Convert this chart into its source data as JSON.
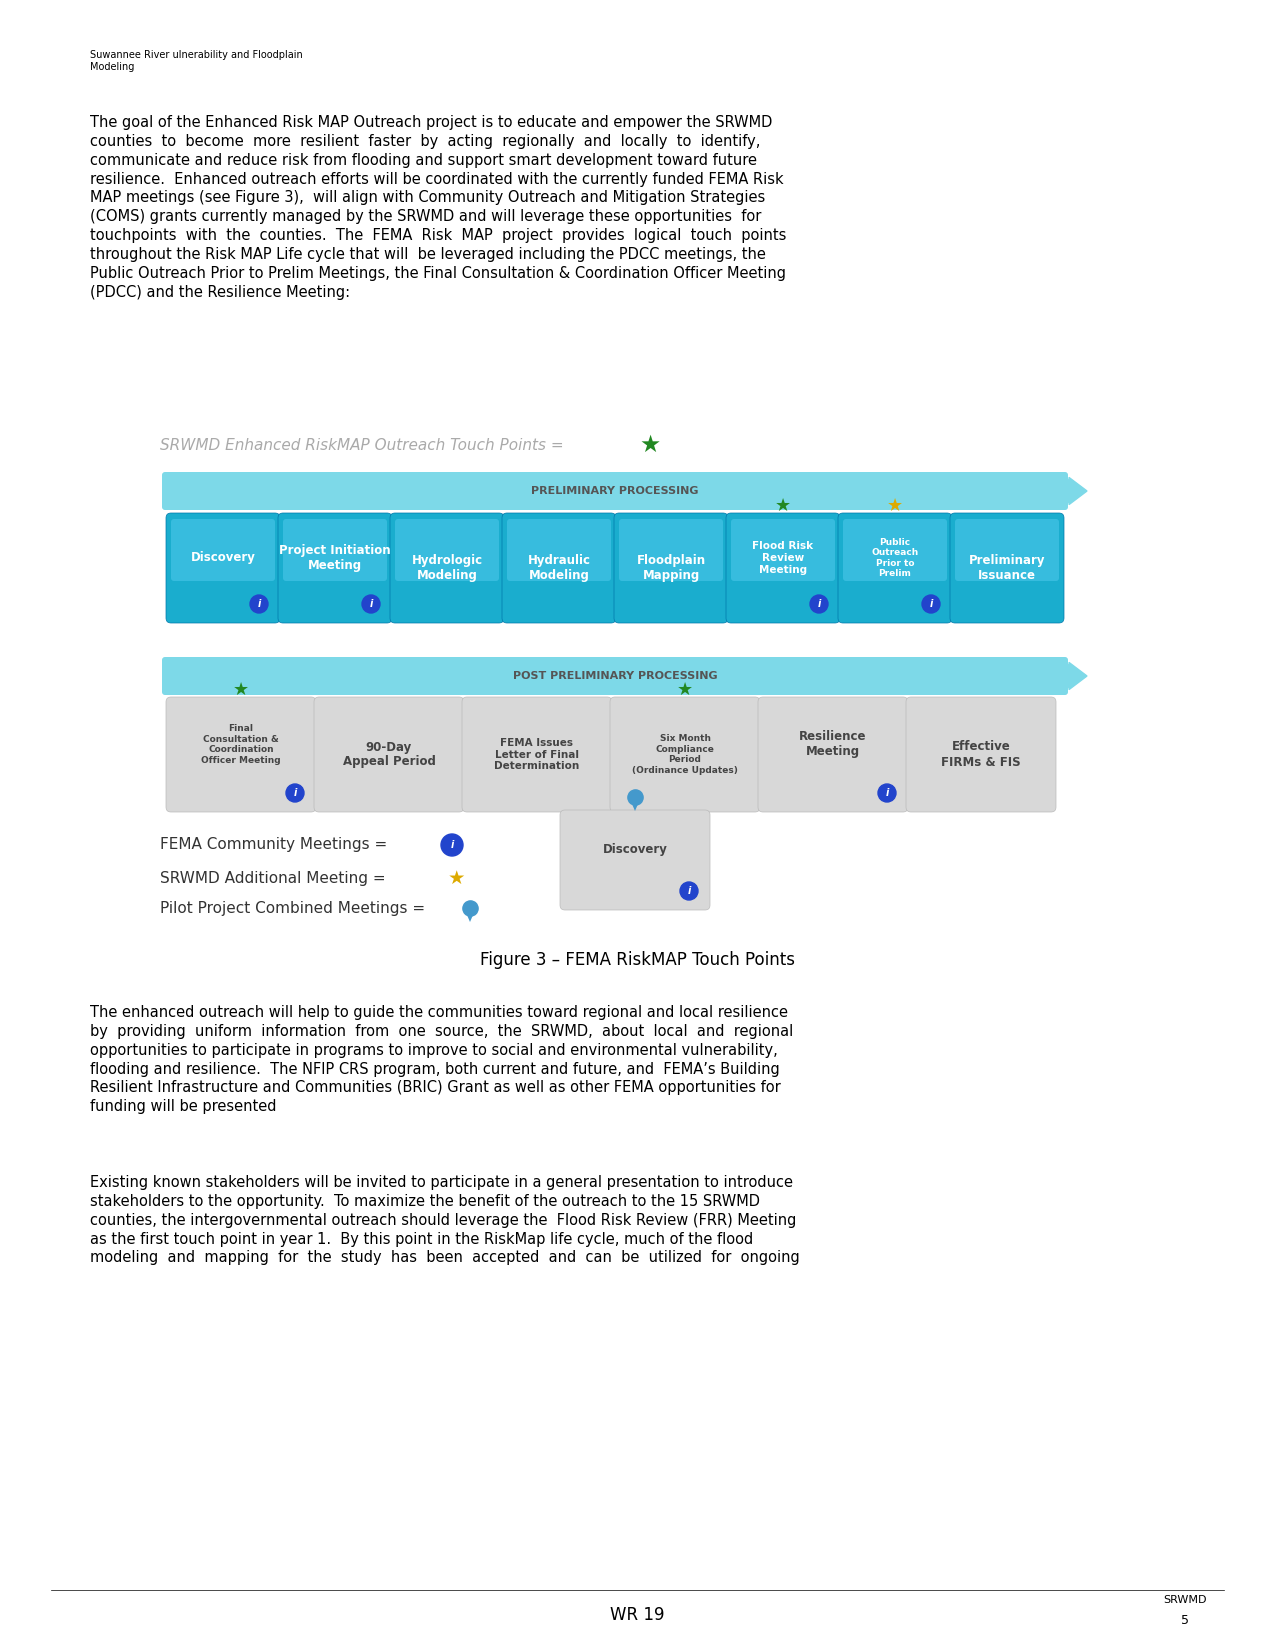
{
  "page_header": "Suwannee River ulnerability and Floodplain\nModeling",
  "prelim_label": "PRELIMINARY PROCESSING",
  "post_prelim_label": "POST PRELIMINARY PROCESSING",
  "legend_label": "SRWMD Enhanced RiskMAP Outreach Touch Points =",
  "row1_boxes": [
    {
      "label": "Discovery",
      "has_info": true,
      "has_star": false,
      "has_yellow_star": false
    },
    {
      "label": "Project Initiation\nMeeting",
      "has_info": true,
      "has_star": false,
      "has_yellow_star": false
    },
    {
      "label": "Hydrologic\nModeling",
      "has_info": false,
      "has_star": false,
      "has_yellow_star": false
    },
    {
      "label": "Hydraulic\nModeling",
      "has_info": false,
      "has_star": false,
      "has_yellow_star": false
    },
    {
      "label": "Floodplain\nMapping",
      "has_info": false,
      "has_star": false,
      "has_yellow_star": false
    },
    {
      "label": "Flood Risk\nReview\nMeeting",
      "has_info": true,
      "has_star": true,
      "has_yellow_star": false
    },
    {
      "label": "Public\nOutreach\nPrior to\nPrelim",
      "has_info": true,
      "has_star": true,
      "has_yellow_star": true
    },
    {
      "label": "Preliminary\nIssuance",
      "has_info": false,
      "has_star": false,
      "has_yellow_star": false
    }
  ],
  "row2_boxes": [
    {
      "label": "Final\nConsultation &\nCoordination\nOfficer Meeting",
      "has_info": true,
      "has_star": true
    },
    {
      "label": "90-Day\nAppeal Period",
      "has_info": false,
      "has_star": false
    },
    {
      "label": "FEMA Issues\nLetter of Final\nDetermination",
      "has_info": false,
      "has_star": false
    },
    {
      "label": "Six Month\nCompliance\nPeriod\n(Ordinance Updates)",
      "has_info": false,
      "has_star": true
    },
    {
      "label": "Resilience\nMeeting",
      "has_info": true,
      "has_star": false
    },
    {
      "label": "Effective\nFIRMs & FIS",
      "has_info": false,
      "has_star": false
    }
  ],
  "figure_caption": "Figure 3 – FEMA RiskMAP Touch Points",
  "footer_left": "WR 19",
  "footer_right_top": "SRWMD",
  "footer_right_bottom": "5",
  "bg_color": "#ffffff",
  "box_blue": "#1aadce",
  "box_gray": "#d8d8d8",
  "bar_color": "#7dd9e8",
  "info_blue": "#2244cc",
  "star_green": "#228822",
  "star_yellow": "#ddaa00",
  "drop_blue": "#4499cc",
  "legend_gray": "#aaaaaa",
  "text_dark": "#333333"
}
